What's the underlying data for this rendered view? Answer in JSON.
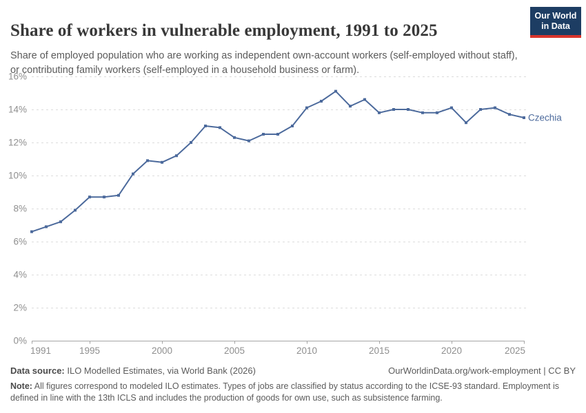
{
  "header": {
    "title": "Share of workers in vulnerable employment, 1991 to 2025",
    "subtitle": "Share of employed population who are working as independent own-account workers (self-employed without staff), or contributing family workers (self-employed in a household business or farm).",
    "logo": {
      "line1": "Our World",
      "line2": "in Data"
    }
  },
  "chart_data": {
    "type": "line",
    "title": "Share of workers in vulnerable employment, 1991 to 2025",
    "xlabel": "",
    "ylabel": "",
    "xlim": [
      1991,
      2025
    ],
    "ylim": [
      0,
      16
    ],
    "grid": "horizontal-dashed",
    "legend_position": "end-of-line-label",
    "x_ticks": [
      1991,
      1995,
      2000,
      2005,
      2010,
      2015,
      2020,
      2025
    ],
    "y_ticks": [
      0,
      2,
      4,
      6,
      8,
      10,
      12,
      14,
      16
    ],
    "y_tick_labels": [
      "0%",
      "2%",
      "4%",
      "6%",
      "8%",
      "10%",
      "12%",
      "14%",
      "16%"
    ],
    "series": [
      {
        "name": "Czechia",
        "color": "#4c6a9c",
        "x": [
          1991,
          1992,
          1993,
          1994,
          1995,
          1996,
          1997,
          1998,
          1999,
          2000,
          2001,
          2002,
          2003,
          2004,
          2005,
          2006,
          2007,
          2008,
          2009,
          2010,
          2011,
          2012,
          2013,
          2014,
          2015,
          2016,
          2017,
          2018,
          2019,
          2020,
          2021,
          2022,
          2023,
          2024,
          2025
        ],
        "values": [
          6.6,
          6.9,
          7.2,
          7.9,
          8.7,
          8.7,
          8.8,
          10.1,
          10.9,
          10.8,
          11.2,
          12.0,
          13.0,
          12.9,
          12.3,
          12.1,
          12.5,
          12.5,
          13.0,
          14.1,
          14.5,
          15.1,
          14.2,
          14.6,
          13.8,
          14.0,
          14.0,
          13.8,
          13.8,
          14.1,
          13.2,
          14.0,
          14.1,
          13.7,
          13.5
        ]
      }
    ]
  },
  "footer": {
    "source_label": "Data source:",
    "source_text": " ILO Modelled Estimates, via World Bank (2026)",
    "link_text": "OurWorldinData.org/work-employment | CC BY",
    "note_label": "Note:",
    "note_text": " All figures correspond to modeled ILO estimates. Types of jobs are classified by status according to the ICSE-93 standard. Employment is defined in line with the 13th ICLS and includes the production of goods for own use, such as subsistence farming."
  },
  "colors": {
    "line": "#4c6a9c",
    "grid": "#dcdcdc",
    "axis": "#a5a5a5",
    "tick_label": "#8f8f8f",
    "title": "#383838",
    "subtitle": "#5b5b5b",
    "logo_bg": "#1d3d63",
    "logo_bar": "#d9352c"
  }
}
